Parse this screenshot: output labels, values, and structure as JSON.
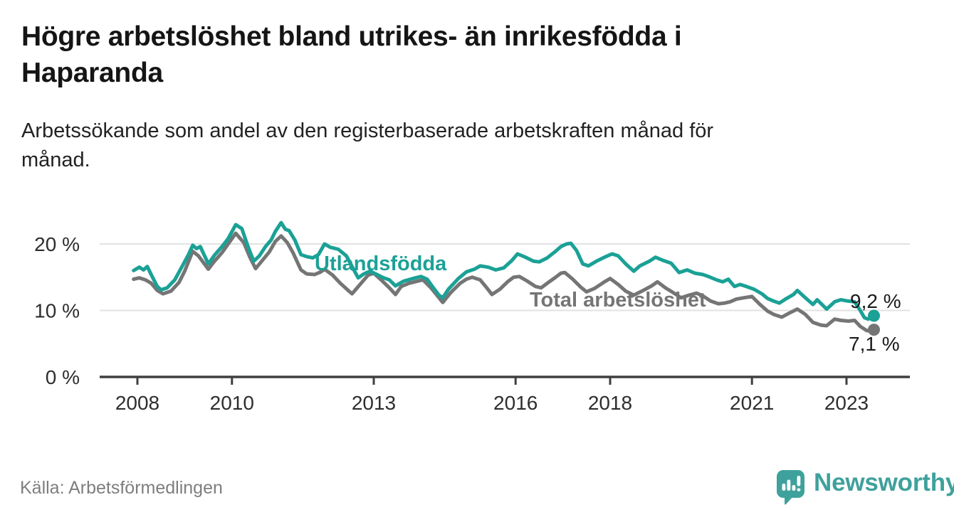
{
  "header": {
    "title_lines": [
      "Högre arbetslöshet bland utrikes- än inrikesfödda i",
      "Haparanda"
    ],
    "subtitle_lines": [
      "Arbetssökande som andel av den registerbaserade arbetskraften månad för",
      "månad."
    ]
  },
  "footer": {
    "source": "Källa: Arbetsförmedlingen",
    "brand": "Newsworthy",
    "brand_icon": "bar-chart-speech-bubble-icon",
    "brand_color": "#3FA19C"
  },
  "chart_data": {
    "type": "line",
    "unit": "%",
    "grid": "horizontal",
    "x_axis": {
      "ticks": [
        2008,
        2010,
        2013,
        2016,
        2018,
        2021,
        2023
      ],
      "tick_labels": [
        "2008",
        "2010",
        "2013",
        "2016",
        "2018",
        "2021",
        "2023"
      ],
      "range": [
        2007.2,
        2024.4
      ]
    },
    "y_axis": {
      "ticks": [
        0,
        10,
        20
      ],
      "tick_labels": [
        "0 %",
        "10 %",
        "20 %"
      ],
      "range": [
        0,
        24.5
      ]
    },
    "series": [
      {
        "id": "utlandsfodda",
        "name": "Utlandsfödda",
        "color": "#1BA196",
        "end_label": "9,2 %",
        "end_value": 9.2,
        "points": [
          [
            2007.92,
            16.0
          ],
          [
            2008.04,
            16.5
          ],
          [
            2008.13,
            16.1
          ],
          [
            2008.21,
            16.6
          ],
          [
            2008.29,
            15.4
          ],
          [
            2008.42,
            13.6
          ],
          [
            2008.5,
            13.1
          ],
          [
            2008.63,
            13.4
          ],
          [
            2008.79,
            14.6
          ],
          [
            2008.96,
            16.8
          ],
          [
            2009.08,
            18.4
          ],
          [
            2009.17,
            19.8
          ],
          [
            2009.25,
            19.3
          ],
          [
            2009.33,
            19.6
          ],
          [
            2009.5,
            17.0
          ],
          [
            2009.63,
            18.3
          ],
          [
            2009.79,
            19.6
          ],
          [
            2009.92,
            20.8
          ],
          [
            2010.08,
            22.9
          ],
          [
            2010.21,
            22.3
          ],
          [
            2010.33,
            19.8
          ],
          [
            2010.46,
            17.4
          ],
          [
            2010.58,
            18.2
          ],
          [
            2010.71,
            19.6
          ],
          [
            2010.83,
            20.6
          ],
          [
            2010.92,
            21.9
          ],
          [
            2011.04,
            23.2
          ],
          [
            2011.13,
            22.2
          ],
          [
            2011.21,
            22.0
          ],
          [
            2011.33,
            20.6
          ],
          [
            2011.46,
            18.4
          ],
          [
            2011.58,
            18.1
          ],
          [
            2011.71,
            17.9
          ],
          [
            2011.83,
            18.4
          ],
          [
            2011.96,
            20.0
          ],
          [
            2012.08,
            19.5
          ],
          [
            2012.25,
            19.2
          ],
          [
            2012.42,
            18.2
          ],
          [
            2012.54,
            16.6
          ],
          [
            2012.67,
            14.9
          ],
          [
            2012.79,
            15.5
          ],
          [
            2012.92,
            15.9
          ],
          [
            2013.04,
            15.5
          ],
          [
            2013.21,
            14.9
          ],
          [
            2013.33,
            14.6
          ],
          [
            2013.46,
            13.7
          ],
          [
            2013.63,
            14.4
          ],
          [
            2013.83,
            14.8
          ],
          [
            2014.0,
            15.1
          ],
          [
            2014.13,
            14.7
          ],
          [
            2014.25,
            13.5
          ],
          [
            2014.38,
            12.3
          ],
          [
            2014.46,
            11.9
          ],
          [
            2014.58,
            13.2
          ],
          [
            2014.79,
            14.8
          ],
          [
            2014.96,
            15.8
          ],
          [
            2015.13,
            16.2
          ],
          [
            2015.25,
            16.7
          ],
          [
            2015.42,
            16.5
          ],
          [
            2015.58,
            16.1
          ],
          [
            2015.75,
            16.4
          ],
          [
            2015.92,
            17.5
          ],
          [
            2016.04,
            18.5
          ],
          [
            2016.21,
            18.0
          ],
          [
            2016.38,
            17.4
          ],
          [
            2016.5,
            17.3
          ],
          [
            2016.67,
            17.9
          ],
          [
            2016.83,
            18.8
          ],
          [
            2016.96,
            19.6
          ],
          [
            2017.08,
            20.0
          ],
          [
            2017.17,
            20.1
          ],
          [
            2017.29,
            19.0
          ],
          [
            2017.42,
            17.0
          ],
          [
            2017.54,
            16.7
          ],
          [
            2017.71,
            17.4
          ],
          [
            2017.88,
            18.0
          ],
          [
            2018.04,
            18.5
          ],
          [
            2018.17,
            18.2
          ],
          [
            2018.33,
            17.0
          ],
          [
            2018.5,
            15.9
          ],
          [
            2018.63,
            16.7
          ],
          [
            2018.83,
            17.4
          ],
          [
            2018.96,
            18.0
          ],
          [
            2019.13,
            17.5
          ],
          [
            2019.29,
            17.1
          ],
          [
            2019.46,
            15.7
          ],
          [
            2019.63,
            16.1
          ],
          [
            2019.79,
            15.6
          ],
          [
            2019.96,
            15.4
          ],
          [
            2020.08,
            15.1
          ],
          [
            2020.25,
            14.6
          ],
          [
            2020.38,
            14.3
          ],
          [
            2020.5,
            14.7
          ],
          [
            2020.63,
            13.6
          ],
          [
            2020.75,
            13.9
          ],
          [
            2020.88,
            13.6
          ],
          [
            2021.04,
            13.2
          ],
          [
            2021.21,
            12.5
          ],
          [
            2021.33,
            11.8
          ],
          [
            2021.46,
            11.4
          ],
          [
            2021.58,
            11.1
          ],
          [
            2021.71,
            11.7
          ],
          [
            2021.88,
            12.4
          ],
          [
            2021.96,
            13.0
          ],
          [
            2022.13,
            11.9
          ],
          [
            2022.29,
            10.9
          ],
          [
            2022.38,
            11.6
          ],
          [
            2022.58,
            10.2
          ],
          [
            2022.75,
            11.3
          ],
          [
            2022.88,
            11.6
          ],
          [
            2023.04,
            11.4
          ],
          [
            2023.17,
            11.3
          ],
          [
            2023.29,
            10.0
          ],
          [
            2023.38,
            8.9
          ],
          [
            2023.46,
            8.7
          ],
          [
            2023.58,
            9.2
          ]
        ]
      },
      {
        "id": "total-arbetsloshet",
        "name": "Total arbetslöshet",
        "color": "#757575",
        "end_label": "7,1 %",
        "end_value": 7.1,
        "points": [
          [
            2007.92,
            14.7
          ],
          [
            2008.04,
            14.9
          ],
          [
            2008.17,
            14.6
          ],
          [
            2008.29,
            14.1
          ],
          [
            2008.42,
            13.0
          ],
          [
            2008.54,
            12.5
          ],
          [
            2008.71,
            12.9
          ],
          [
            2008.88,
            14.2
          ],
          [
            2009.0,
            15.9
          ],
          [
            2009.17,
            18.9
          ],
          [
            2009.29,
            18.2
          ],
          [
            2009.5,
            16.2
          ],
          [
            2009.63,
            17.4
          ],
          [
            2009.79,
            18.7
          ],
          [
            2009.92,
            20.0
          ],
          [
            2010.08,
            21.6
          ],
          [
            2010.25,
            20.2
          ],
          [
            2010.38,
            18.0
          ],
          [
            2010.5,
            16.3
          ],
          [
            2010.63,
            17.4
          ],
          [
            2010.79,
            18.8
          ],
          [
            2010.92,
            20.4
          ],
          [
            2011.04,
            21.2
          ],
          [
            2011.17,
            20.2
          ],
          [
            2011.29,
            18.7
          ],
          [
            2011.46,
            16.1
          ],
          [
            2011.58,
            15.5
          ],
          [
            2011.75,
            15.4
          ],
          [
            2011.88,
            15.8
          ],
          [
            2011.96,
            16.2
          ],
          [
            2012.13,
            15.3
          ],
          [
            2012.29,
            14.1
          ],
          [
            2012.46,
            13.0
          ],
          [
            2012.54,
            12.5
          ],
          [
            2012.71,
            13.9
          ],
          [
            2012.88,
            15.3
          ],
          [
            2013.0,
            15.6
          ],
          [
            2013.17,
            14.5
          ],
          [
            2013.33,
            13.4
          ],
          [
            2013.46,
            12.4
          ],
          [
            2013.58,
            13.6
          ],
          [
            2013.75,
            14.1
          ],
          [
            2013.92,
            14.4
          ],
          [
            2014.04,
            14.6
          ],
          [
            2014.21,
            13.4
          ],
          [
            2014.38,
            11.9
          ],
          [
            2014.46,
            11.2
          ],
          [
            2014.63,
            12.7
          ],
          [
            2014.83,
            14.1
          ],
          [
            2014.96,
            14.7
          ],
          [
            2015.08,
            15.0
          ],
          [
            2015.25,
            14.6
          ],
          [
            2015.38,
            13.5
          ],
          [
            2015.5,
            12.4
          ],
          [
            2015.67,
            13.2
          ],
          [
            2015.83,
            14.3
          ],
          [
            2015.96,
            15.0
          ],
          [
            2016.08,
            15.1
          ],
          [
            2016.25,
            14.4
          ],
          [
            2016.42,
            13.6
          ],
          [
            2016.54,
            13.4
          ],
          [
            2016.67,
            14.1
          ],
          [
            2016.83,
            14.9
          ],
          [
            2016.96,
            15.6
          ],
          [
            2017.04,
            15.7
          ],
          [
            2017.21,
            14.7
          ],
          [
            2017.38,
            13.5
          ],
          [
            2017.5,
            12.8
          ],
          [
            2017.67,
            13.3
          ],
          [
            2017.88,
            14.3
          ],
          [
            2018.0,
            14.8
          ],
          [
            2018.17,
            13.9
          ],
          [
            2018.33,
            12.9
          ],
          [
            2018.5,
            12.3
          ],
          [
            2018.67,
            12.9
          ],
          [
            2018.88,
            13.7
          ],
          [
            2019.0,
            14.3
          ],
          [
            2019.17,
            13.4
          ],
          [
            2019.33,
            12.7
          ],
          [
            2019.5,
            11.9
          ],
          [
            2019.67,
            12.3
          ],
          [
            2019.83,
            12.6
          ],
          [
            2019.96,
            12.2
          ],
          [
            2020.13,
            11.4
          ],
          [
            2020.29,
            11.0
          ],
          [
            2020.42,
            11.1
          ],
          [
            2020.54,
            11.3
          ],
          [
            2020.67,
            11.7
          ],
          [
            2020.83,
            11.9
          ],
          [
            2021.0,
            12.1
          ],
          [
            2021.17,
            10.9
          ],
          [
            2021.33,
            9.9
          ],
          [
            2021.46,
            9.4
          ],
          [
            2021.63,
            9.0
          ],
          [
            2021.79,
            9.6
          ],
          [
            2021.96,
            10.2
          ],
          [
            2022.13,
            9.4
          ],
          [
            2022.29,
            8.2
          ],
          [
            2022.46,
            7.8
          ],
          [
            2022.58,
            7.7
          ],
          [
            2022.75,
            8.7
          ],
          [
            2022.88,
            8.5
          ],
          [
            2023.04,
            8.4
          ],
          [
            2023.17,
            8.5
          ],
          [
            2023.29,
            7.6
          ],
          [
            2023.42,
            7.0
          ],
          [
            2023.5,
            6.9
          ],
          [
            2023.58,
            7.1
          ]
        ]
      }
    ]
  }
}
